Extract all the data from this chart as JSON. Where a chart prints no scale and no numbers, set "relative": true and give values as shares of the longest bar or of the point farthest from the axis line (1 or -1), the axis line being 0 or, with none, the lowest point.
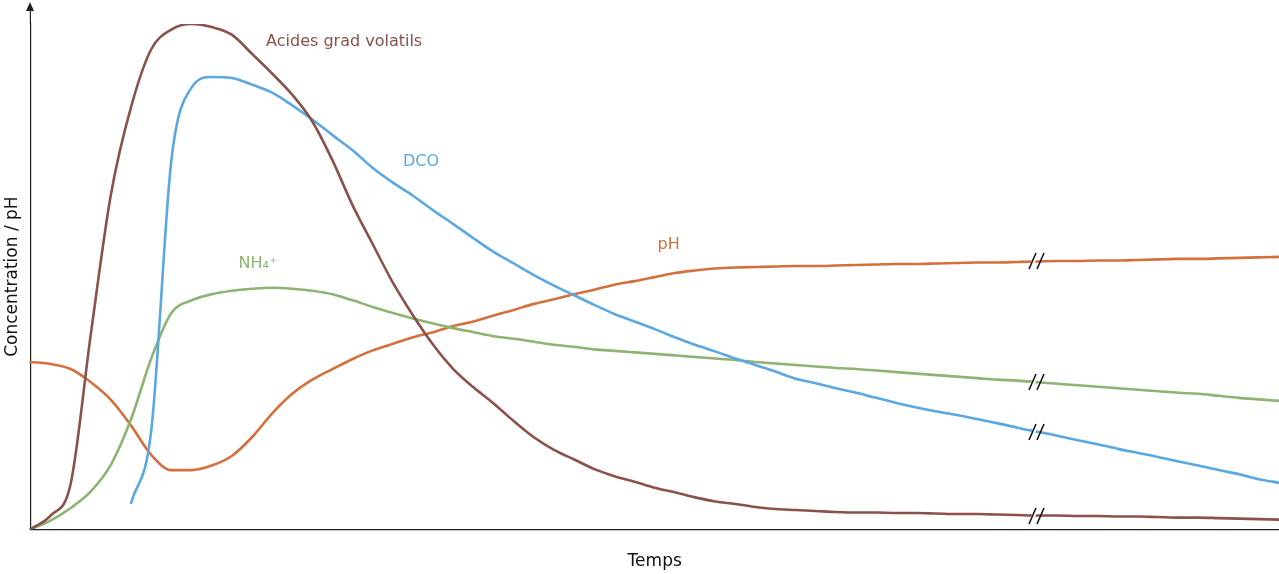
{
  "chart_data": {
    "type": "line",
    "relative": true,
    "xlabel": "Temps",
    "ylabel": "Concentration / pH",
    "legend": false,
    "grid": false,
    "marker": "none",
    "line_style": "solid",
    "categories": [
      null,
      null,
      null,
      null,
      null,
      null,
      null,
      null,
      null,
      null,
      null,
      null,
      null,
      null,
      null,
      null,
      null,
      null,
      null,
      null,
      null,
      null,
      null,
      null,
      null,
      null,
      null,
      null,
      null,
      null,
      null,
      null,
      null,
      null,
      null,
      null,
      null,
      null,
      null,
      null,
      null,
      null,
      null,
      null,
      null,
      null,
      null,
      null,
      null,
      null,
      null,
      null,
      null,
      null,
      null,
      null,
      null,
      null,
      null,
      null,
      null,
      null,
      null
    ],
    "series": [
      {
        "name": "Acides grad volatils",
        "color": "#8b514c",
        "values": [
          0,
          0.027,
          0.09,
          0.386,
          0.663,
          0.836,
          0.95,
          0.989,
          1,
          0.994,
          0.979,
          0.941,
          0.902,
          0.86,
          0.807,
          0.73,
          0.641,
          0.564,
          0.488,
          0.423,
          0.365,
          0.317,
          0.281,
          0.249,
          0.214,
          0.182,
          0.157,
          0.138,
          0.119,
          0.105,
          0.094,
          0.082,
          0.073,
          0.063,
          0.055,
          0.05,
          0.044,
          0.04,
          0.038,
          0.036,
          0.034,
          0.033,
          0.033,
          0.032,
          0.032,
          0.031,
          0.03,
          0.03,
          0.029,
          0.028,
          0.027,
          0.027,
          0.026,
          0.026,
          0.025,
          0.025,
          0.024,
          0.023,
          0.023,
          0.022,
          0.021,
          0.02,
          0.019
        ]
      },
      {
        "name": "DCO",
        "color": "#5aa8e2",
        "values": [
          null,
          null,
          null,
          null,
          null,
          0.052,
          0.195,
          0.73,
          0.874,
          0.895,
          0.893,
          0.88,
          0.864,
          0.839,
          0.811,
          0.78,
          0.75,
          0.715,
          0.686,
          0.66,
          0.631,
          0.604,
          0.576,
          0.549,
          0.526,
          0.503,
          0.482,
          0.463,
          0.444,
          0.426,
          0.411,
          0.396,
          0.38,
          0.365,
          0.352,
          0.338,
          0.325,
          0.312,
          0.298,
          0.289,
          0.279,
          0.27,
          0.26,
          0.25,
          0.241,
          0.233,
          0.226,
          0.218,
          0.21,
          0.201,
          0.193,
          0.185,
          0.176,
          0.168,
          0.159,
          0.151,
          0.143,
          0.134,
          0.126,
          0.117,
          0.109,
          0.099,
          0.092
        ]
      },
      {
        "name": "NH₄⁺",
        "color": "#8fb372",
        "values": [
          0,
          0.017,
          0.042,
          0.075,
          0.128,
          0.218,
          0.338,
          0.428,
          0.453,
          0.465,
          0.472,
          0.476,
          0.478,
          0.476,
          0.472,
          0.465,
          0.453,
          0.44,
          0.428,
          0.417,
          0.407,
          0.398,
          0.39,
          0.382,
          0.377,
          0.371,
          0.365,
          0.361,
          0.356,
          0.353,
          0.35,
          0.347,
          0.344,
          0.341,
          0.338,
          0.335,
          0.331,
          0.328,
          0.325,
          0.322,
          0.319,
          0.317,
          0.314,
          0.311,
          0.308,
          0.305,
          0.302,
          0.299,
          0.296,
          0.294,
          0.291,
          0.288,
          0.285,
          0.282,
          0.279,
          0.276,
          0.273,
          0.27,
          0.268,
          0.264,
          0.26,
          0.257,
          0.254
        ]
      },
      {
        "name": "pH",
        "color": "#d4703c",
        "values": [
          0.331,
          0.327,
          0.317,
          0.291,
          0.256,
          0.205,
          0.147,
          0.117,
          0.117,
          0.126,
          0.145,
          0.182,
          0.229,
          0.268,
          0.296,
          0.317,
          0.337,
          0.354,
          0.367,
          0.38,
          0.39,
          0.402,
          0.411,
          0.423,
          0.434,
          0.446,
          0.455,
          0.465,
          0.474,
          0.484,
          0.491,
          0.499,
          0.507,
          0.512,
          0.516,
          0.518,
          0.519,
          0.52,
          0.521,
          0.521,
          0.522,
          0.523,
          0.524,
          0.525,
          0.525,
          0.526,
          0.527,
          0.528,
          0.528,
          0.529,
          0.53,
          0.531,
          0.531,
          0.532,
          0.532,
          0.533,
          0.534,
          0.535,
          0.535,
          0.536,
          0.537,
          0.538,
          0.539
        ]
      }
    ]
  }
}
